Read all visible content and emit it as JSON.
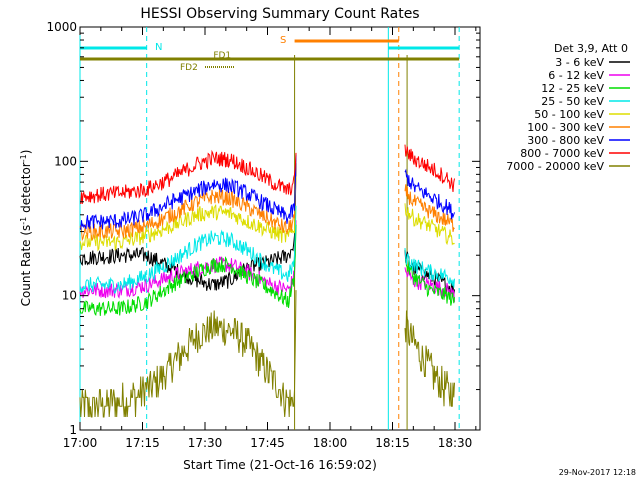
{
  "chart_data": {
    "type": "line",
    "title": "HESSI Observing Summary Count Rates",
    "xlabel": "Start Time (21-Oct-16 16:59:02)",
    "ylabel_main": "Count Rate (s",
    "ylabel_sup1": "-1",
    "ylabel_mid": " detector",
    "ylabel_sup2": "-1",
    "ylabel_end": ")",
    "yscale": "log",
    "ylim": [
      1,
      1000
    ],
    "xlim_minutes": [
      0,
      96
    ],
    "x_ticks": [
      {
        "m": 0,
        "label": "17:00"
      },
      {
        "m": 15,
        "label": "17:15"
      },
      {
        "m": 30,
        "label": "17:30"
      },
      {
        "m": 45,
        "label": "17:45"
      },
      {
        "m": 60,
        "label": "18:00"
      },
      {
        "m": 75,
        "label": "18:15"
      },
      {
        "m": 90,
        "label": "18:30"
      }
    ],
    "y_ticks": [
      {
        "v": 1,
        "label": "1"
      },
      {
        "v": 10,
        "label": "10"
      },
      {
        "v": 100,
        "label": "100"
      },
      {
        "v": 1000,
        "label": "1000"
      }
    ],
    "legend_title": "Det 3,9, Att 0",
    "legend_position": "right",
    "series": [
      {
        "name": "3 - 6 keV",
        "color": "#000000",
        "x": [
          0,
          10,
          16,
          22,
          28,
          32,
          36,
          40,
          46,
          50,
          51.5,
          52,
          78,
          80,
          84,
          88,
          90
        ],
        "y": [
          19,
          20,
          20,
          16,
          13,
          12,
          13,
          16,
          18,
          20,
          25,
          170,
          20,
          16,
          14,
          12,
          11
        ]
      },
      {
        "name": "6 - 12 keV",
        "color": "#ee00ee",
        "x": [
          0,
          10,
          16,
          22,
          28,
          32,
          36,
          40,
          46,
          50,
          51.5,
          52,
          78,
          80,
          84,
          88,
          90
        ],
        "y": [
          11,
          11,
          12,
          14,
          16,
          17,
          17,
          15,
          12,
          11,
          14,
          60,
          15,
          13,
          12,
          11,
          10
        ]
      },
      {
        "name": "12 - 25 keV",
        "color": "#00dd00",
        "x": [
          0,
          10,
          16,
          22,
          28,
          32,
          36,
          40,
          46,
          50,
          51.5,
          52,
          78,
          80,
          84,
          88,
          90
        ],
        "y": [
          8,
          8,
          9,
          12,
          15,
          17,
          17,
          14,
          11,
          9,
          14,
          60,
          18,
          14,
          11,
          10,
          9
        ]
      },
      {
        "name": "25 - 50 keV",
        "color": "#00e8e8",
        "x": [
          0,
          10,
          16,
          22,
          28,
          32,
          36,
          40,
          46,
          50,
          51.5,
          52,
          78,
          80,
          84,
          88,
          90
        ],
        "y": [
          12,
          12,
          14,
          18,
          24,
          27,
          26,
          22,
          16,
          14,
          18,
          80,
          20,
          17,
          15,
          14,
          13
        ]
      },
      {
        "name": "50 - 100 keV",
        "color": "#dddd00",
        "x": [
          0,
          10,
          16,
          22,
          28,
          32,
          36,
          40,
          46,
          50,
          51.5,
          52,
          78,
          80,
          84,
          88,
          90
        ],
        "y": [
          25,
          25,
          28,
          33,
          40,
          42,
          41,
          36,
          30,
          27,
          33,
          120,
          45,
          38,
          33,
          28,
          26
        ]
      },
      {
        "name": "100 - 300 keV",
        "color": "#ff8000",
        "x": [
          0,
          10,
          16,
          22,
          28,
          32,
          36,
          40,
          46,
          50,
          51.5,
          52,
          78,
          80,
          84,
          88,
          90
        ],
        "y": [
          30,
          30,
          33,
          40,
          50,
          55,
          53,
          46,
          36,
          31,
          38,
          140,
          60,
          50,
          42,
          36,
          33
        ]
      },
      {
        "name": "300 - 800 keV",
        "color": "#0000ff",
        "x": [
          0,
          10,
          16,
          22,
          28,
          32,
          36,
          40,
          46,
          50,
          51.5,
          52,
          78,
          80,
          84,
          88,
          90
        ],
        "y": [
          35,
          36,
          40,
          50,
          60,
          68,
          66,
          58,
          45,
          38,
          45,
          150,
          80,
          65,
          55,
          46,
          40
        ]
      },
      {
        "name": "800 - 7000 keV",
        "color": "#ff0000",
        "x": [
          0,
          10,
          16,
          22,
          28,
          32,
          36,
          40,
          46,
          50,
          51.5,
          52,
          78,
          80,
          84,
          88,
          90
        ],
        "y": [
          55,
          58,
          62,
          75,
          95,
          105,
          103,
          90,
          70,
          60,
          70,
          170,
          120,
          105,
          90,
          75,
          65
        ]
      },
      {
        "name": "7000 - 20000 keV",
        "color": "#808000",
        "x": [
          0,
          4,
          8,
          12,
          16,
          20,
          24,
          28,
          32,
          36,
          40,
          44,
          48,
          50,
          51.5,
          52,
          78,
          80,
          82,
          85,
          88,
          90
        ],
        "y": [
          1.5,
          1.5,
          1.6,
          1.7,
          2.0,
          2.5,
          3.6,
          5.0,
          5.8,
          5.6,
          4.5,
          3.0,
          2.0,
          1.6,
          1.8,
          20,
          6,
          4.5,
          3.5,
          2.6,
          2.0,
          1.8
        ]
      }
    ],
    "annotations": {
      "saa_label": "S",
      "night_label": "N",
      "fd1_label": "FD1",
      "fd2_label": "FD2",
      "saa_color": "#ff8000",
      "night_color": "#00e8e8",
      "flag_color": "#808000"
    },
    "markers": {
      "cyan_solid": [
        0,
        74
      ],
      "cyan_dashed": [
        16,
        91
      ],
      "olive_solid": [
        51.5,
        78.5
      ],
      "orange_dashed": [
        76.5
      ]
    },
    "footer_date": "29-Nov-2017 12:18"
  }
}
